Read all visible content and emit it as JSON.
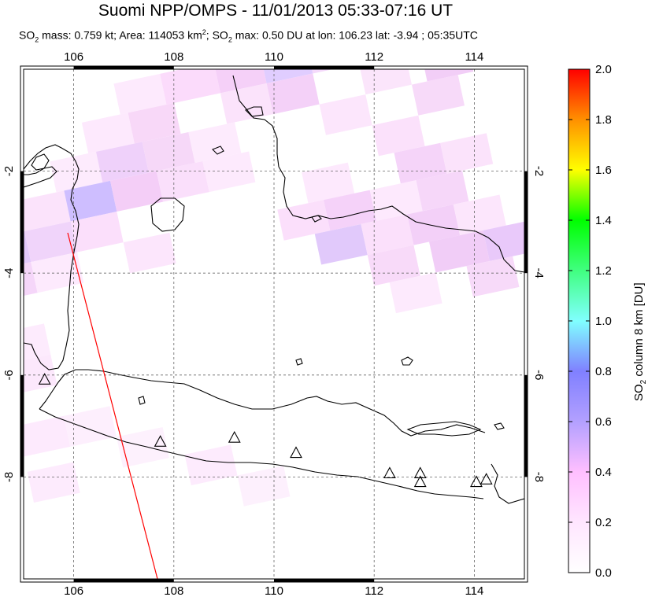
{
  "title": "Suomi NPP/OMPS - 11/01/2013 05:33-07:16 UT",
  "subtitle": {
    "mass_prefix": "SO",
    "mass_sub": "2",
    "mass_text": " mass: 0.759 kt; Area: 114053 km",
    "area_sup": "2",
    "max_prefix": "; SO",
    "max_sub": "2",
    "max_text": " max: 0.50 DU at lon: 106.23 lat: -3.94 ; 05:35UTC"
  },
  "map": {
    "lon_ticks": [
      "106",
      "108",
      "110",
      "112",
      "114"
    ],
    "lat_ticks": [
      "-2",
      "-4",
      "-6",
      "-8"
    ],
    "lon_values": [
      106,
      108,
      110,
      112,
      114
    ],
    "lat_values": [
      -2,
      -4,
      -6,
      -8
    ],
    "lon_range": [
      105,
      115
    ],
    "lat_range": [
      -10,
      0
    ],
    "volcano_icon": "triangle-icon",
    "volcanoes": [
      {
        "lon": 105.42,
        "lat": -6.1
      },
      {
        "lon": 107.73,
        "lat": -7.32
      },
      {
        "lon": 109.21,
        "lat": -7.24
      },
      {
        "lon": 110.44,
        "lat": -7.54
      },
      {
        "lon": 112.31,
        "lat": -7.94
      },
      {
        "lon": 112.92,
        "lat": -7.94
      },
      {
        "lon": 112.92,
        "lat": -8.11
      },
      {
        "lon": 114.04,
        "lat": -8.11
      },
      {
        "lon": 114.24,
        "lat": -8.06
      }
    ],
    "orbit_track_color": "#ff0000"
  },
  "colorbar": {
    "label_prefix": "SO",
    "label_sub": "2",
    "label_suffix": " column 8 km [DU]",
    "ticks": [
      "0.0",
      "0.2",
      "0.4",
      "0.6",
      "0.8",
      "1.0",
      "1.2",
      "1.4",
      "1.6",
      "1.8",
      "2.0"
    ],
    "tick_values": [
      0.0,
      0.2,
      0.4,
      0.6,
      0.8,
      1.0,
      1.2,
      1.4,
      1.6,
      1.8,
      2.0
    ],
    "colors": [
      "#ffffff",
      "#ffb3ff",
      "#8080ff",
      "#80ffff",
      "#00ff00",
      "#ffff00",
      "#ff0000"
    ]
  }
}
